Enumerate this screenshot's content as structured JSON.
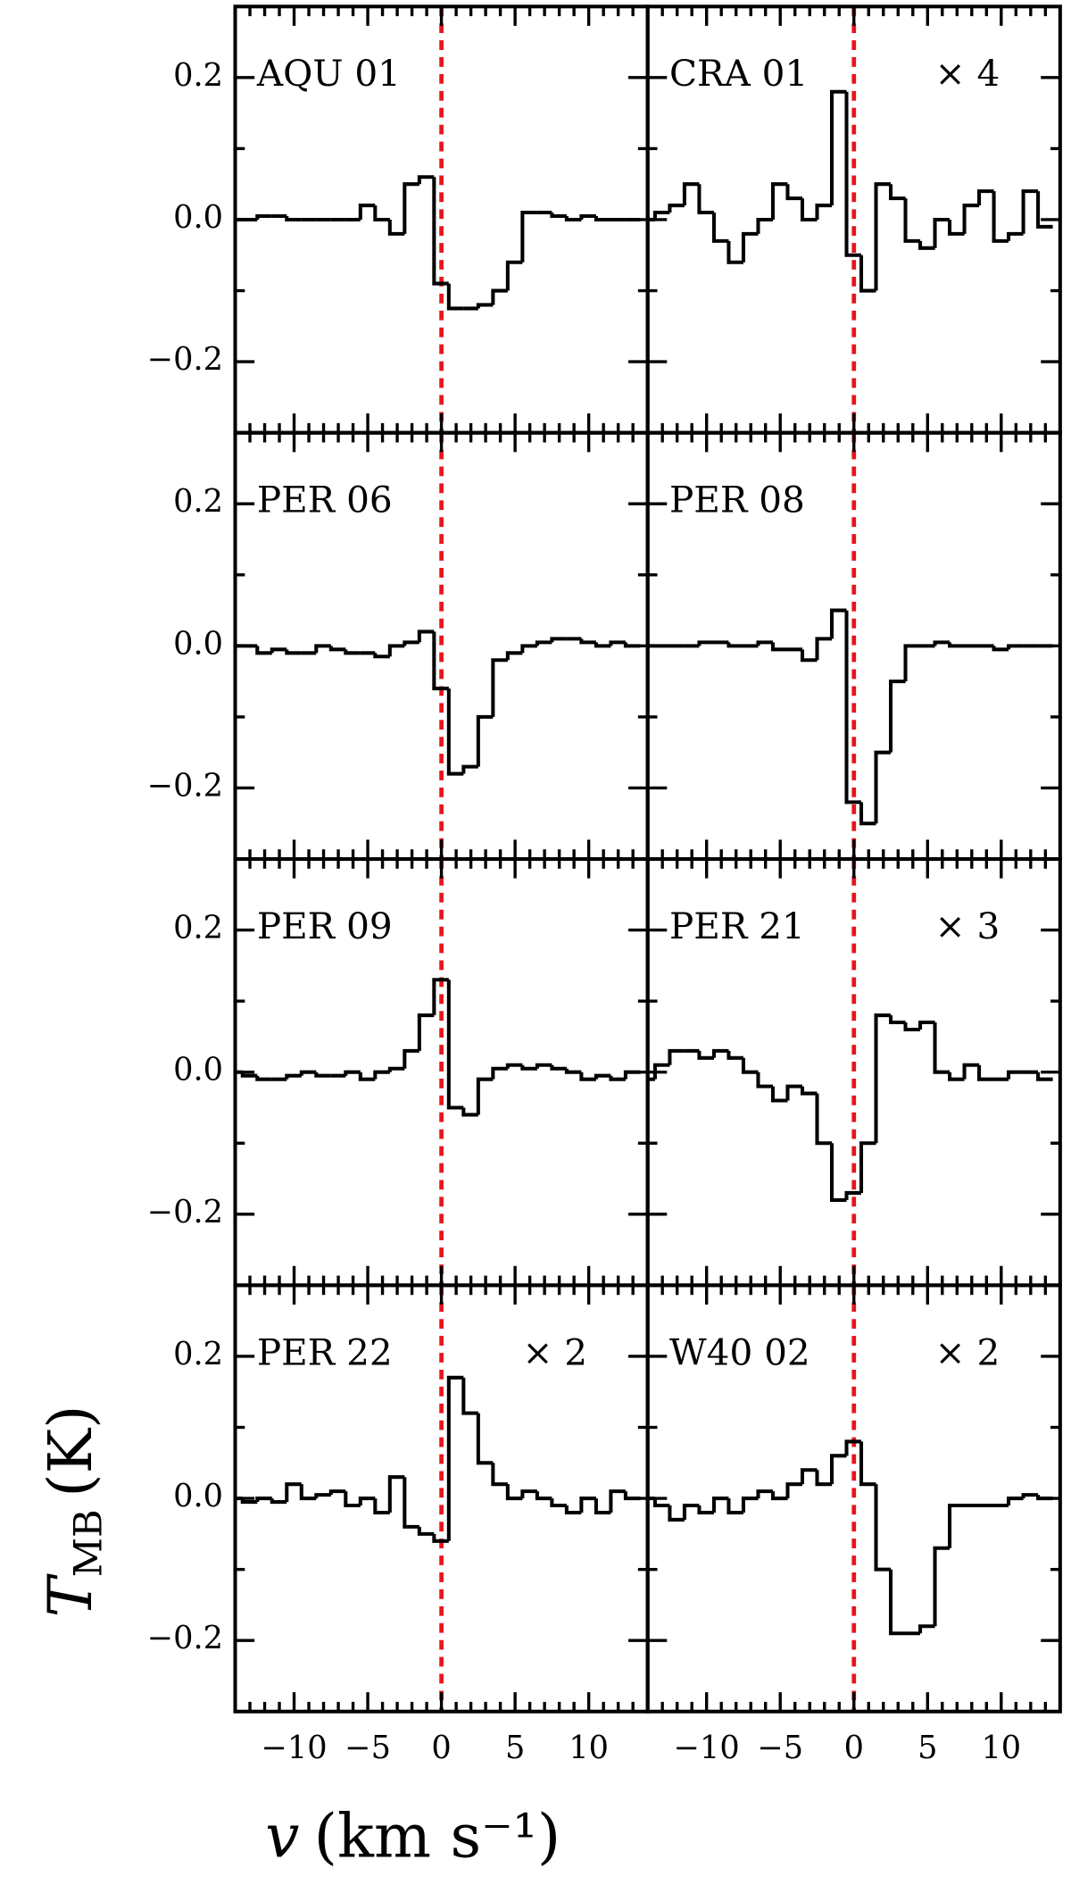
{
  "chart_data": {
    "type": "step",
    "xlabel": {
      "symbol": "v",
      "unit": "(km s⁻¹)"
    },
    "ylabel": {
      "symbol": "T",
      "subscript": "MB",
      "unit": "(K)"
    },
    "xlim": [
      -14,
      14
    ],
    "ylim": [
      -0.3,
      0.3
    ],
    "xticks": [
      {
        "value": -10,
        "label": "−10"
      },
      {
        "value": -5,
        "label": "−5"
      },
      0,
      5,
      10
    ],
    "xminorticks": [
      -13,
      -12,
      -11,
      -9,
      -8,
      -7,
      -6,
      -4,
      -3,
      -2,
      -1,
      1,
      2,
      3,
      4,
      6,
      7,
      8,
      9,
      11,
      12,
      13
    ],
    "yticks": [
      {
        "value": -0.2,
        "label": "−0.2"
      },
      {
        "value": 0,
        "label": "0.0"
      },
      0.2
    ],
    "yminorticks": [
      -0.1,
      0.1
    ],
    "reference_x": 0,
    "reference_color": "#e8141c",
    "color": "#000000",
    "x": [
      -14,
      -13,
      -12,
      -11,
      -10,
      -9,
      -8,
      -7,
      -6,
      -5,
      -4,
      -3,
      -2,
      -1,
      0,
      1,
      2,
      3,
      4,
      5,
      6,
      7,
      8,
      9,
      10,
      11,
      12,
      13
    ],
    "panels": [
      {
        "title": "AQU 01",
        "values": [
          0,
          0,
          0.005,
          0.005,
          0,
          0,
          0,
          0,
          0,
          0.02,
          0,
          -0.02,
          0.05,
          0.06,
          -0.09,
          -0.125,
          -0.125,
          -0.12,
          -0.1,
          -0.06,
          0.01,
          0.01,
          0.005,
          0,
          0.005,
          0,
          0,
          0
        ]
      },
      {
        "title": "CRA 01",
        "scale_label": "× 4",
        "values": [
          0,
          0.01,
          0.02,
          0.05,
          0.01,
          -0.03,
          -0.06,
          -0.02,
          0,
          0.05,
          0.03,
          0,
          0.02,
          0.18,
          -0.05,
          -0.1,
          0.05,
          0.03,
          -0.03,
          -0.04,
          0,
          -0.02,
          0.02,
          0.04,
          -0.03,
          -0.02,
          0.04,
          -0.01
        ]
      },
      {
        "title": "PER 06",
        "values": [
          0,
          0,
          -0.01,
          -0.005,
          -0.01,
          -0.01,
          0,
          -0.005,
          -0.01,
          -0.01,
          -0.015,
          0,
          0.005,
          0.02,
          -0.06,
          -0.18,
          -0.17,
          -0.1,
          -0.02,
          -0.01,
          0,
          0.005,
          0.01,
          0.01,
          0.005,
          0,
          0.005,
          0
        ]
      },
      {
        "title": "PER 08",
        "values": [
          0,
          0,
          0,
          0,
          0.005,
          0.005,
          0,
          0,
          0.005,
          -0.005,
          -0.005,
          -0.02,
          0.01,
          0.05,
          -0.22,
          -0.25,
          -0.15,
          -0.05,
          0,
          0,
          0.005,
          0,
          0,
          0,
          -0.005,
          0,
          0,
          0
        ]
      },
      {
        "title": "PER 09",
        "values": [
          0,
          -0.005,
          -0.01,
          -0.01,
          -0.005,
          0,
          -0.005,
          -0.005,
          0,
          -0.01,
          0,
          0.005,
          0.03,
          0.08,
          0.13,
          -0.05,
          -0.06,
          -0.01,
          0.005,
          0.01,
          0.005,
          0.01,
          0.005,
          0,
          -0.01,
          -0.005,
          -0.01,
          0
        ]
      },
      {
        "title": "PER 21",
        "scale_label": "× 3",
        "values": [
          -0.01,
          0.01,
          0.03,
          0.03,
          0.02,
          0.03,
          0.02,
          0,
          -0.02,
          -0.04,
          -0.02,
          -0.03,
          -0.1,
          -0.18,
          -0.17,
          -0.1,
          0.08,
          0.07,
          0.06,
          0.07,
          0,
          -0.01,
          0.01,
          -0.01,
          -0.01,
          0,
          0,
          -0.01
        ]
      },
      {
        "title": "PER 22",
        "scale_label": "× 2",
        "values": [
          0,
          -0.005,
          0,
          -0.005,
          0.02,
          0,
          0.005,
          0.01,
          -0.01,
          0,
          -0.02,
          0.03,
          -0.04,
          -0.05,
          -0.06,
          0.17,
          0.12,
          0.05,
          0.02,
          0,
          0.01,
          0,
          -0.01,
          -0.02,
          0,
          -0.02,
          0.01,
          0
        ]
      },
      {
        "title": "W40 02",
        "scale_label": "× 2",
        "values": [
          0,
          -0.01,
          -0.03,
          -0.01,
          -0.02,
          0,
          -0.02,
          0,
          0.01,
          0,
          0.02,
          0.04,
          0.02,
          0.06,
          0.08,
          0.02,
          -0.1,
          -0.19,
          -0.19,
          -0.18,
          -0.07,
          -0.01,
          -0.01,
          -0.01,
          -0.01,
          0,
          0.005,
          0
        ]
      }
    ]
  }
}
